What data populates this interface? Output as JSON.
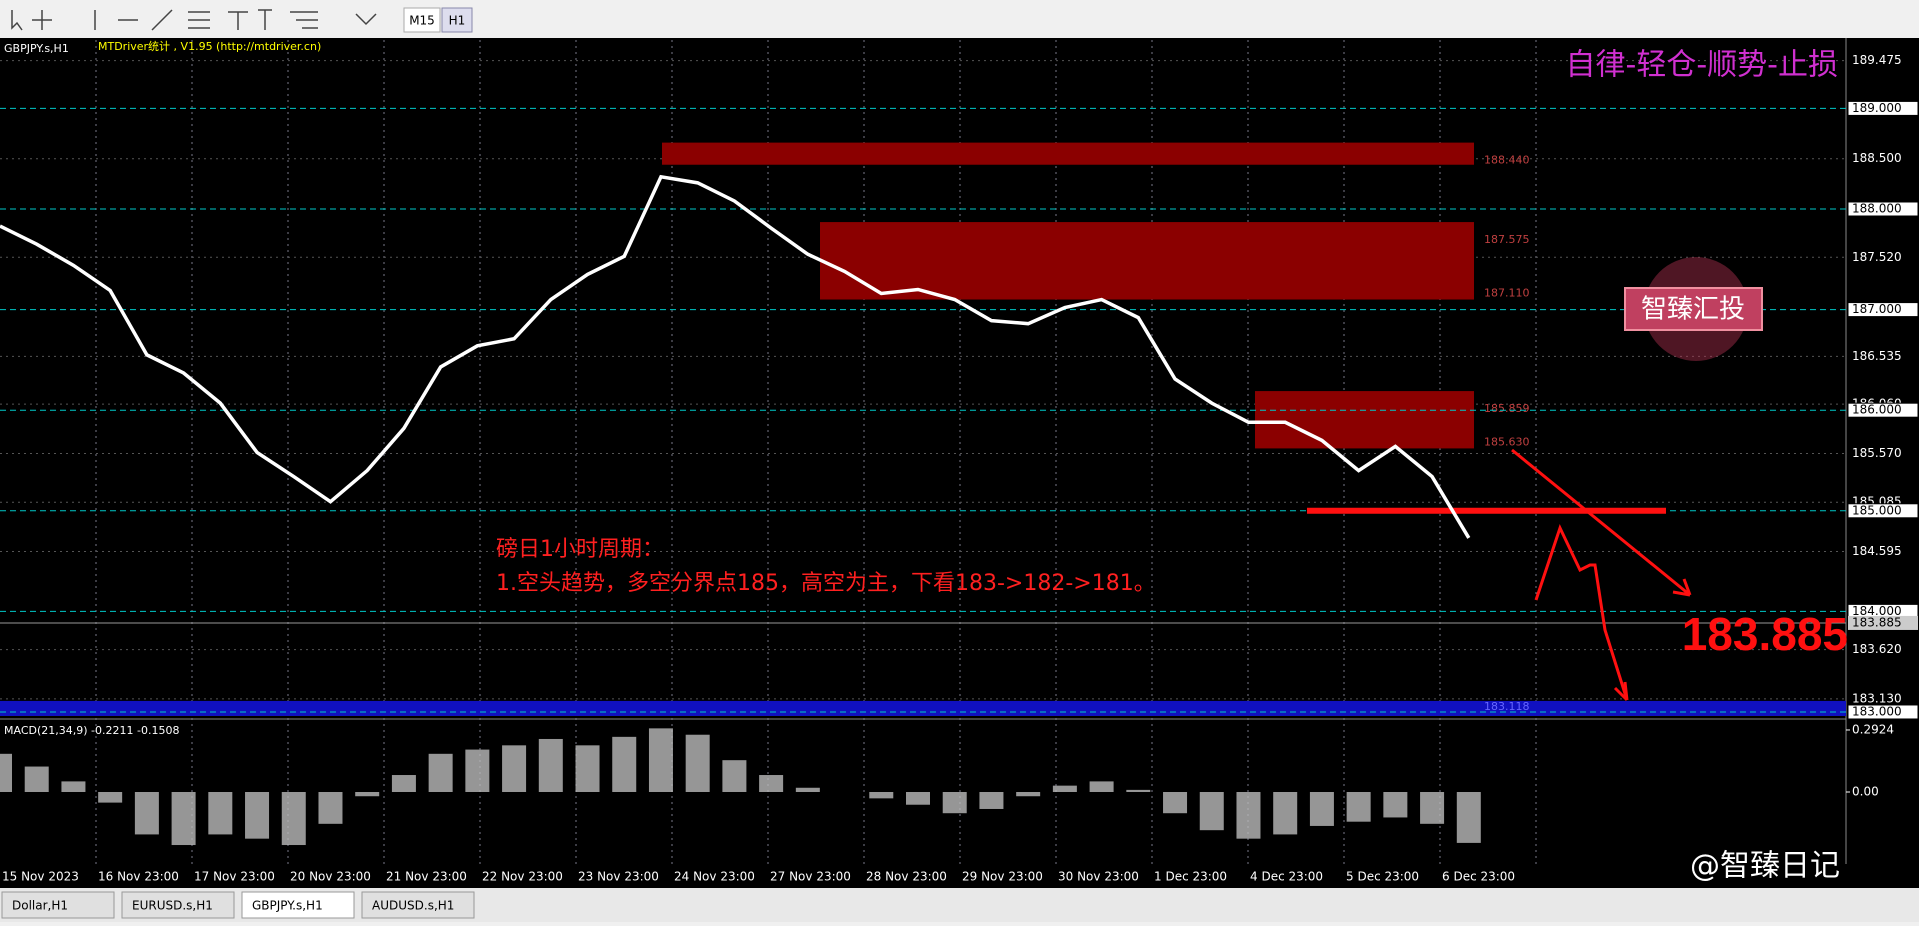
{
  "toolbar": {
    "buttons": [
      "M15",
      "H1"
    ]
  },
  "chart": {
    "symbol": "GBPJPY.s,H1",
    "indicator_info": "MTDriver统计 , V1.95 (http://mtdriver.cn)",
    "motto": "自律-轻仓-顺势-止损",
    "stamp": "智臻汇投",
    "annotation_title": "磅日1小时周期：",
    "annotation_text": "1.空头趋势，多空分界点185，高空为主，下看183->182->181。",
    "current_price": 183.885,
    "key_level": 185,
    "ylim": [
      182.96,
      189.68
    ],
    "price_ticks": [
      189.475,
      {
        "value": 188.5,
        "label": "188.500"
      },
      {
        "value": 187.52,
        "label": "187.520"
      },
      186.535,
      {
        "value": 186.06,
        "label": "186.060"
      },
      {
        "value": 185.57,
        "label": "185.570"
      },
      185.085,
      184.595,
      {
        "value": 183.62,
        "label": "183.620"
      },
      {
        "value": 183.13,
        "label": "183.130"
      }
    ],
    "level_ticks": [
      {
        "value": 189,
        "label": "189.000"
      },
      {
        "value": 188,
        "label": "188.000"
      },
      {
        "value": 187,
        "label": "187.000"
      },
      {
        "value": 186,
        "label": "186.000"
      },
      {
        "value": 185,
        "label": "185.000"
      },
      {
        "value": 184,
        "label": "184.000"
      },
      {
        "value": 183,
        "label": "183.000"
      }
    ],
    "zones": [
      {
        "from": 188.44,
        "to": 188.66,
        "labels": [
          "188.440"
        ]
      },
      {
        "from": 187.1,
        "to": 187.87,
        "labels": [
          "187.575",
          "187.110"
        ]
      },
      {
        "from": 185.62,
        "to": 186.19,
        "labels": [
          "185.859",
          "185.630"
        ]
      },
      {
        "from": 182.96,
        "to": 183.11,
        "labels": [
          "183.118"
        ]
      }
    ],
    "time_labels": [
      "15 Nov 2023",
      "16 Nov 23:00",
      "17 Nov 23:00",
      "20 Nov 23:00",
      "21 Nov 23:00",
      "22 Nov 23:00",
      "23 Nov 23:00",
      "24 Nov 23:00",
      "27 Nov 23:00",
      "28 Nov 23:00",
      "29 Nov 23:00",
      "30 Nov 23:00",
      "1 Dec 23:00",
      "4 Dec 23:00",
      "5 Dec 23:00",
      "6 Dec 23:00"
    ],
    "ma_values": [
      187.83,
      187.65,
      187.44,
      187.19,
      186.55,
      186.37,
      186.07,
      185.58,
      185.34,
      185.09,
      185.4,
      185.82,
      186.43,
      186.64,
      186.71,
      187.1,
      187.35,
      187.53,
      188.32,
      188.26,
      188.08,
      187.81,
      187.55,
      187.38,
      187.16,
      187.2,
      187.1,
      186.89,
      186.86,
      187.02,
      187.1,
      186.92,
      186.31,
      186.07,
      185.88,
      185.88,
      185.7,
      185.4,
      185.64,
      185.34,
      184.73
    ],
    "macd": {
      "label": "MACD(21,34,9) -0.2211 -0.1508",
      "ylim": [
        -0.33,
        0.33
      ],
      "ticks": [
        0.2924,
        {
          "value": 0,
          "label": "0.00"
        }
      ],
      "values": [
        0.18,
        0.12,
        0.05,
        -0.05,
        -0.2,
        -0.25,
        -0.2,
        -0.22,
        -0.25,
        -0.15,
        -0.02,
        0.08,
        0.18,
        0.2,
        0.22,
        0.25,
        0.22,
        0.26,
        0.3,
        0.27,
        0.15,
        0.08,
        0.02,
        0,
        -0.03,
        -0.06,
        -0.1,
        -0.08,
        -0.02,
        0.03,
        0.05,
        0.01,
        -0.1,
        -0.18,
        -0.22,
        -0.2,
        -0.16,
        -0.14,
        -0.12,
        -0.15,
        -0.24
      ]
    }
  },
  "tabs": [
    "Dollar,H1",
    "EURUSD.s,H1",
    "GBPJPY.s,H1",
    "AUDUSD.s,H1"
  ],
  "watermark": "@智臻日记"
}
